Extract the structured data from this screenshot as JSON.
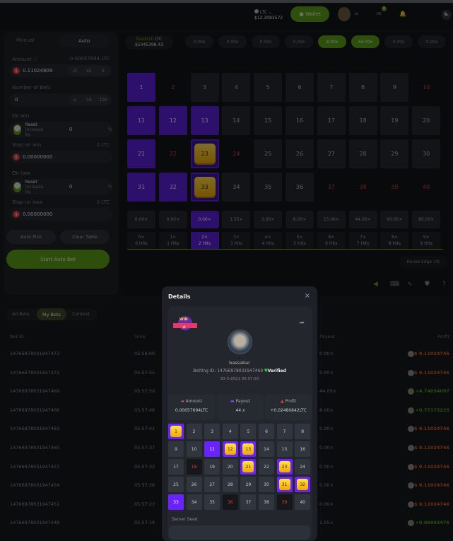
{
  "topbar": {
    "currency": "LTC",
    "balance": "$12.3083572",
    "wallet": "Wallet",
    "notif_count": "0",
    "chat_count": "0"
  },
  "left": {
    "tabs": [
      "Manual",
      "Auto"
    ],
    "active_tab": "Auto",
    "amount_label": "Amount",
    "amount_ltc": "0.00057694 LTC",
    "amount_value": "0.11024809",
    "half": "/2",
    "double": "x2",
    "bets_label": "Number of Bets",
    "bets_value": "0",
    "bets_opts": [
      "∞",
      "10",
      "100"
    ],
    "on_win_label": "On win",
    "reset": "Reset",
    "increase_by": "Increase by",
    "win_value": "0",
    "pct": "%",
    "stop_win_label": "Stop on win",
    "stop_win_ltc": "0 LTC",
    "stop_win_value": "0.00000000",
    "on_lose_label": "On lose",
    "lose_value": "0",
    "stop_lose_label": "Stop on lose",
    "stop_lose_ltc": "0 LTC",
    "stop_lose_value": "0.00000000",
    "auto_pick": "Auto Pick",
    "clear_table": "Clear Table",
    "start": "Start Auto Bet"
  },
  "bankroll": {
    "label": "Bankroll",
    "currency": "LTC",
    "value": "$5045398.43"
  },
  "multipliers": [
    {
      "v": "0.00x"
    },
    {
      "v": "0.00x"
    },
    {
      "v": "0.00x"
    },
    {
      "v": "0.00x"
    },
    {
      "v": "8.00x",
      "active": true
    },
    {
      "v": "44.00x",
      "active": true
    },
    {
      "v": "0.00x"
    },
    {
      "v": "0.00x"
    }
  ],
  "grid": {
    "selected": [
      1,
      11,
      12,
      13,
      21,
      31,
      32
    ],
    "hits": [
      23,
      33
    ],
    "misses": [
      2,
      10,
      22,
      24,
      37,
      38,
      39,
      40
    ]
  },
  "payouts": [
    "0.00×",
    "0.00×",
    "0.00×",
    "1.55×",
    "3.00×",
    "8.00×",
    "15.00×",
    "44.00×",
    "60.00×",
    "85.00×"
  ],
  "hit_labels": [
    {
      "m": "0×",
      "h": "0 Hits"
    },
    {
      "m": "1×",
      "h": "1 Hits"
    },
    {
      "m": "2×",
      "h": "2 Hits"
    },
    {
      "m": "3×",
      "h": "3 Hits"
    },
    {
      "m": "4×",
      "h": "4 Hits"
    },
    {
      "m": "5×",
      "h": "5 Hits"
    },
    {
      "m": "6×",
      "h": "6 Hits"
    },
    {
      "m": "7×",
      "h": "7 Hits"
    },
    {
      "m": "8×",
      "h": "8 Hits"
    },
    {
      "m": "9×",
      "h": "9 Hits"
    }
  ],
  "active_hit_index": 2,
  "house_edge": "House Edge 1%",
  "bets": {
    "tabs": [
      "All Bets",
      "My Bets",
      "Contest"
    ],
    "active": "My Bets",
    "headers": {
      "id": "Bet ID",
      "time": "Time",
      "payout": "Payout",
      "profit": "Profit"
    },
    "rows": [
      {
        "id": "1476697803194​7473",
        "time": "05:58:00",
        "payout": "0.00×",
        "profit": "0.11024746",
        "win": false
      },
      {
        "id": "14766978031947472",
        "time": "05:57:55",
        "payout": "0.00×",
        "profit": "0.11024746",
        "win": false
      },
      {
        "id": "14766978031947469",
        "time": "05:57:50",
        "payout": "44.00×",
        "profit": "+4.74054097",
        "win": true
      },
      {
        "id": "14766978031947466",
        "time": "05:57:46",
        "payout": "8.00×",
        "profit": "+0.77173225",
        "win": true
      },
      {
        "id": "14766978031947463",
        "time": "05:57:41",
        "payout": "0.00×",
        "profit": "0.11024746",
        "win": false
      },
      {
        "id": "14766978031947460",
        "time": "05:57:37",
        "payout": "0.00×",
        "profit": "0.11024746",
        "win": false
      },
      {
        "id": "14766978031947457",
        "time": "05:57:32",
        "payout": "0.00×",
        "profit": "0.11024746",
        "win": false
      },
      {
        "id": "14766978031947454",
        "time": "05:57:28",
        "payout": "0.00×",
        "profit": "0.11024746",
        "win": false
      },
      {
        "id": "14766978031947451",
        "time": "05:57:23",
        "payout": "0.00×",
        "profit": "0.11024746",
        "win": false
      },
      {
        "id": "14766978031947448",
        "time": "05:57:19",
        "payout": "1.55×",
        "profit": "+0.06063476",
        "win": true
      }
    ]
  },
  "modal": {
    "title": "Details",
    "badge": "WIN",
    "username": "bassabar",
    "betting_id_label": "Betting ID:",
    "betting_id": "14766978031947469",
    "verified": "Verified",
    "date": "30-3-2021 05:57:50",
    "amount_label": "Amount",
    "amount": "0.00057694LTC",
    "payout_label": "Payout",
    "payout": "44 x",
    "profit_label": "Profit",
    "profit": "+0.02480842LTC",
    "gems": [
      1,
      12,
      13,
      21,
      23,
      31,
      32
    ],
    "selected": [
      11,
      33
    ],
    "misses": [
      18,
      36,
      39
    ],
    "server_seed": "Server Seed"
  },
  "colors": {
    "accent": "#5d9c18",
    "selected": "#5a1fd6",
    "loss": "#e0601a",
    "win": "#5d9c18"
  }
}
